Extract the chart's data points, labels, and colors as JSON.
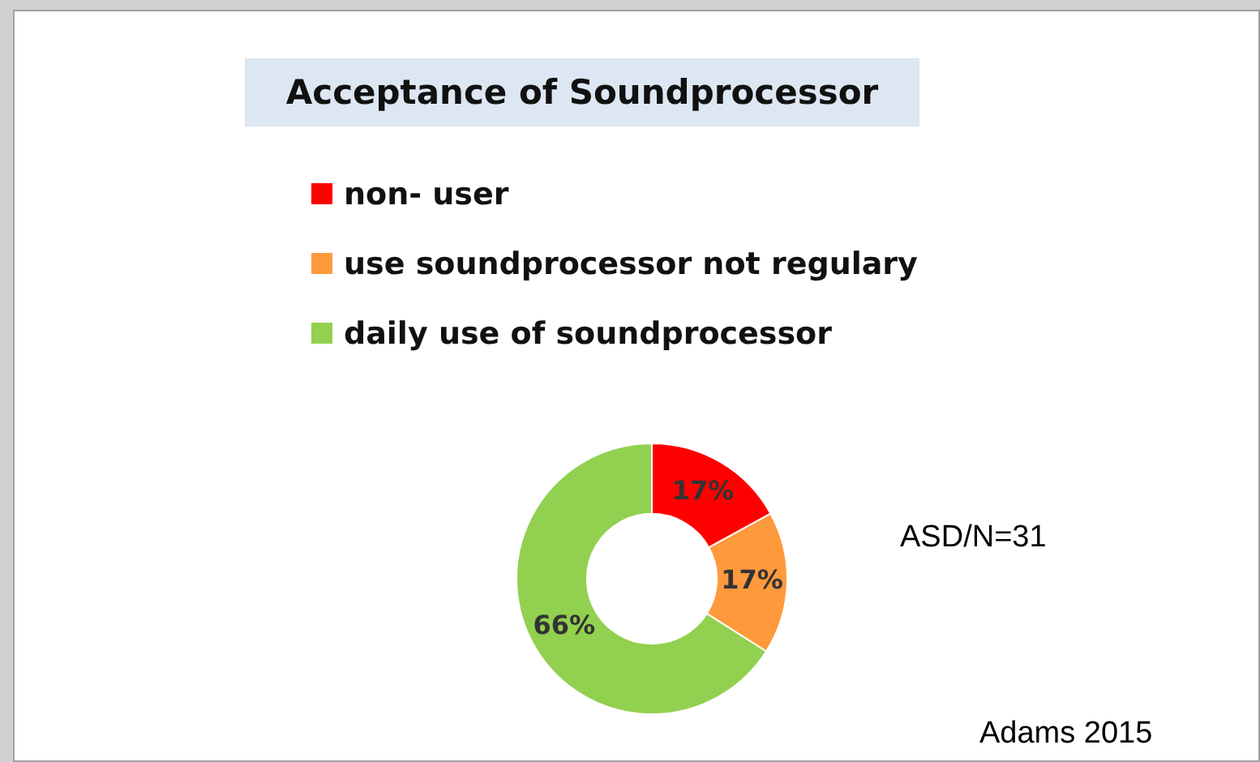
{
  "chart_data": {
    "type": "donut",
    "title": "Acceptance of Soundprocessor",
    "categories": [
      "non- user",
      "use soundprocessor not regulary",
      "daily use of soundprocessor"
    ],
    "values": [
      17,
      17,
      66
    ],
    "colors": [
      "#ff0000",
      "#ff9a3c",
      "#92d050"
    ],
    "value_labels": [
      "17%",
      "17%",
      "66%"
    ],
    "legend": "top",
    "annotations": [
      "ASD/N=31",
      "Adams 2015"
    ]
  }
}
